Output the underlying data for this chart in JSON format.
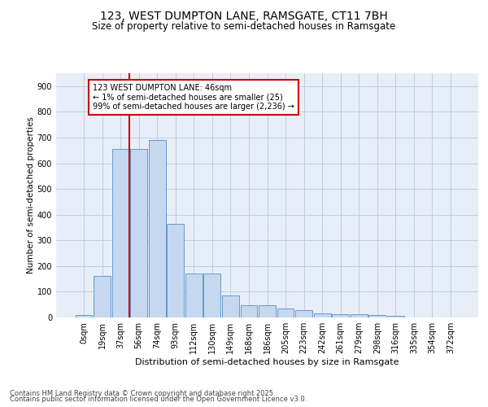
{
  "title1": "123, WEST DUMPTON LANE, RAMSGATE, CT11 7BH",
  "title2": "Size of property relative to semi-detached houses in Ramsgate",
  "xlabel": "Distribution of semi-detached houses by size in Ramsgate",
  "ylabel": "Number of semi-detached properties",
  "categories": [
    "0sqm",
    "19sqm",
    "37sqm",
    "56sqm",
    "74sqm",
    "93sqm",
    "112sqm",
    "130sqm",
    "149sqm",
    "168sqm",
    "186sqm",
    "205sqm",
    "223sqm",
    "242sqm",
    "261sqm",
    "279sqm",
    "298sqm",
    "316sqm",
    "335sqm",
    "354sqm",
    "372sqm"
  ],
  "values": [
    8,
    160,
    655,
    655,
    690,
    365,
    170,
    170,
    85,
    47,
    47,
    35,
    30,
    15,
    13,
    13,
    10,
    5,
    0,
    0,
    0
  ],
  "bar_color": "#c5d8f0",
  "bar_edge_color": "#6699cc",
  "vline_color": "#cc0000",
  "vline_x_pos": 2.5,
  "annotation_text": "123 WEST DUMPTON LANE: 46sqm\n← 1% of semi-detached houses are smaller (25)\n99% of semi-detached houses are larger (2,236) →",
  "ylim_max": 950,
  "yticks": [
    0,
    100,
    200,
    300,
    400,
    500,
    600,
    700,
    800,
    900
  ],
  "bg_color": "#e8eef8",
  "grid_color": "#c0cce0",
  "footer_line1": "Contains HM Land Registry data © Crown copyright and database right 2025.",
  "footer_line2": "Contains public sector information licensed under the Open Government Licence v3.0.",
  "title1_fontsize": 10,
  "title2_fontsize": 8.5,
  "xlabel_fontsize": 8,
  "ylabel_fontsize": 7.5,
  "tick_fontsize": 7,
  "footer_fontsize": 6,
  "annot_fontsize": 7
}
